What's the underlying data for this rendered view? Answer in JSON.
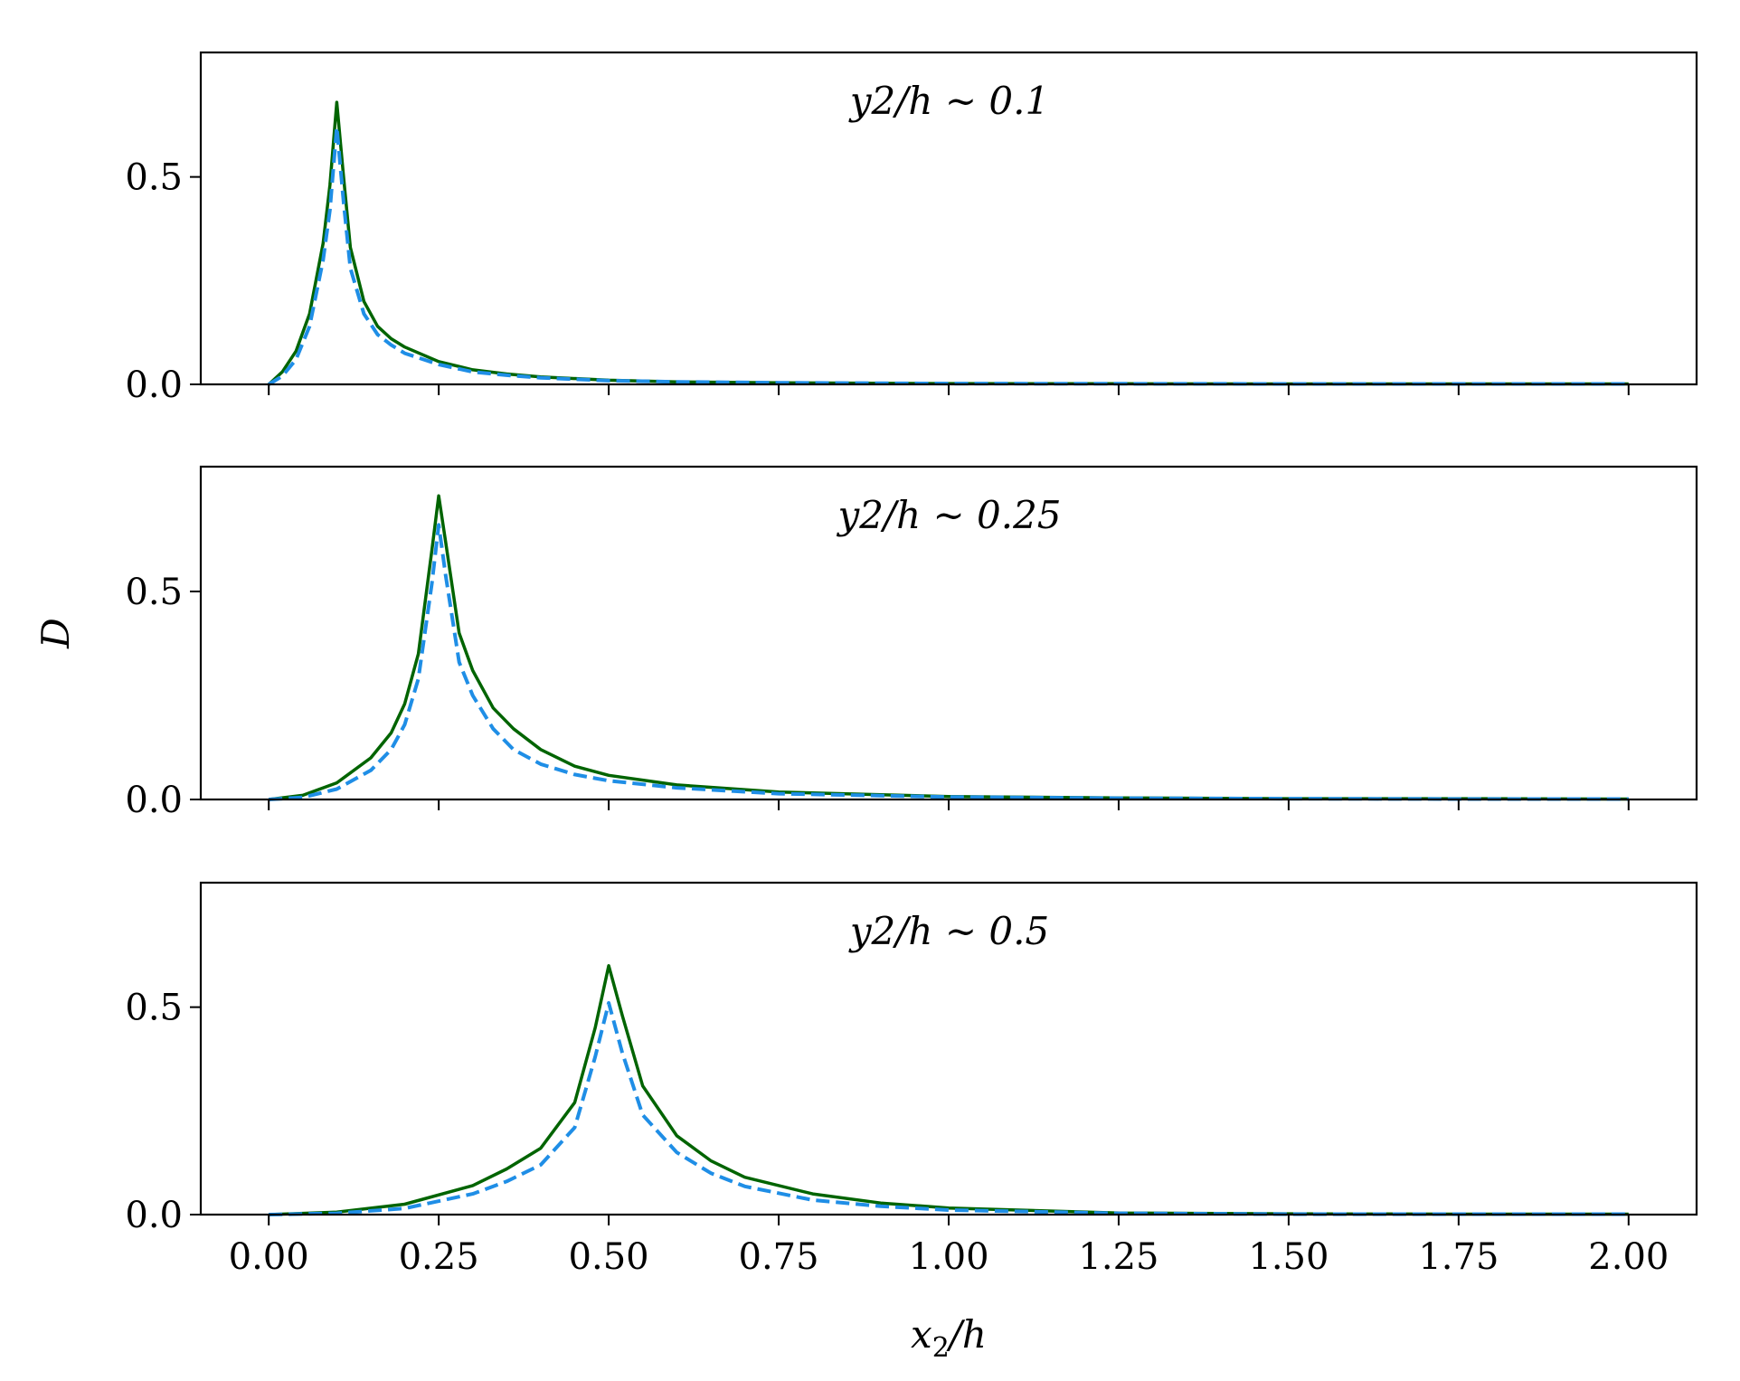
{
  "chart_data": [
    {
      "type": "line",
      "annotation": "y2/h ~ 0.1",
      "xlim": [
        -0.1,
        2.1
      ],
      "ylim": [
        0,
        0.8
      ],
      "yticks": [
        "0.0",
        "0.5"
      ],
      "ytick_values": [
        0,
        0.5
      ],
      "series": [
        {
          "style": "solid",
          "color": "#006400",
          "x": [
            0,
            0.02,
            0.04,
            0.06,
            0.08,
            0.09,
            0.1,
            0.11,
            0.12,
            0.14,
            0.16,
            0.18,
            0.2,
            0.25,
            0.3,
            0.35,
            0.4,
            0.5,
            0.6,
            0.75,
            1.0,
            1.25,
            1.5,
            1.75,
            2.0
          ],
          "y": [
            0,
            0.03,
            0.08,
            0.17,
            0.34,
            0.48,
            0.68,
            0.5,
            0.33,
            0.2,
            0.14,
            0.11,
            0.09,
            0.055,
            0.035,
            0.025,
            0.018,
            0.01,
            0.006,
            0.004,
            0.002,
            0.0015,
            0.001,
            0.001,
            0.001
          ]
        },
        {
          "style": "dashed",
          "color": "#1f8ee6",
          "x": [
            0,
            0.02,
            0.04,
            0.06,
            0.08,
            0.09,
            0.1,
            0.11,
            0.12,
            0.14,
            0.16,
            0.18,
            0.2,
            0.25,
            0.3,
            0.35,
            0.4,
            0.5,
            0.6,
            0.75,
            1.0,
            1.25,
            1.5,
            1.75,
            2.0
          ],
          "y": [
            0,
            0.02,
            0.06,
            0.14,
            0.3,
            0.42,
            0.62,
            0.44,
            0.28,
            0.17,
            0.12,
            0.095,
            0.075,
            0.048,
            0.03,
            0.022,
            0.016,
            0.009,
            0.006,
            0.004,
            0.002,
            0.0015,
            0.001,
            0.001,
            0.001
          ]
        }
      ]
    },
    {
      "type": "line",
      "annotation": "y2/h ~ 0.25",
      "xlim": [
        -0.1,
        2.1
      ],
      "ylim": [
        0,
        0.8
      ],
      "yticks": [
        "0.0",
        "0.5"
      ],
      "ytick_values": [
        0,
        0.5
      ],
      "series": [
        {
          "style": "solid",
          "color": "#006400",
          "x": [
            0,
            0.05,
            0.1,
            0.15,
            0.18,
            0.2,
            0.22,
            0.24,
            0.25,
            0.26,
            0.28,
            0.3,
            0.33,
            0.36,
            0.4,
            0.45,
            0.5,
            0.6,
            0.75,
            1.0,
            1.25,
            1.5,
            1.75,
            2.0
          ],
          "y": [
            0,
            0.01,
            0.04,
            0.1,
            0.16,
            0.23,
            0.35,
            0.6,
            0.73,
            0.62,
            0.4,
            0.31,
            0.22,
            0.17,
            0.12,
            0.08,
            0.058,
            0.035,
            0.018,
            0.007,
            0.004,
            0.002,
            0.002,
            0.001
          ]
        },
        {
          "style": "dashed",
          "color": "#1f8ee6",
          "x": [
            0,
            0.05,
            0.1,
            0.15,
            0.18,
            0.2,
            0.22,
            0.24,
            0.25,
            0.26,
            0.28,
            0.3,
            0.33,
            0.36,
            0.4,
            0.45,
            0.5,
            0.6,
            0.75,
            1.0,
            1.25,
            1.5,
            1.75,
            2.0
          ],
          "y": [
            0,
            0.005,
            0.025,
            0.07,
            0.12,
            0.18,
            0.29,
            0.52,
            0.66,
            0.54,
            0.33,
            0.25,
            0.17,
            0.12,
            0.085,
            0.06,
            0.045,
            0.028,
            0.014,
            0.006,
            0.003,
            0.002,
            0.001,
            0.001
          ]
        }
      ]
    },
    {
      "type": "line",
      "annotation": "y2/h ~ 0.5",
      "xlim": [
        -0.1,
        2.1
      ],
      "ylim": [
        0,
        0.8
      ],
      "yticks": [
        "0.0",
        "0.5"
      ],
      "ytick_values": [
        0,
        0.5
      ],
      "xticks": [
        "0.00",
        "0.25",
        "0.50",
        "0.75",
        "1.00",
        "1.25",
        "1.50",
        "1.75",
        "2.00"
      ],
      "xtick_values": [
        0,
        0.25,
        0.5,
        0.75,
        1.0,
        1.25,
        1.5,
        1.75,
        2.0
      ],
      "series": [
        {
          "style": "solid",
          "color": "#006400",
          "x": [
            0,
            0.1,
            0.2,
            0.3,
            0.35,
            0.4,
            0.45,
            0.48,
            0.5,
            0.52,
            0.55,
            0.6,
            0.65,
            0.7,
            0.8,
            0.9,
            1.0,
            1.25,
            1.5,
            1.75,
            2.0
          ],
          "y": [
            0,
            0.006,
            0.025,
            0.07,
            0.11,
            0.16,
            0.27,
            0.45,
            0.6,
            0.48,
            0.31,
            0.19,
            0.13,
            0.09,
            0.05,
            0.028,
            0.016,
            0.004,
            0.002,
            0.001,
            0.001
          ]
        },
        {
          "style": "dashed",
          "color": "#1f8ee6",
          "x": [
            0,
            0.1,
            0.2,
            0.3,
            0.35,
            0.4,
            0.45,
            0.48,
            0.5,
            0.52,
            0.55,
            0.6,
            0.65,
            0.7,
            0.8,
            0.9,
            1.0,
            1.25,
            1.5,
            1.75,
            2.0
          ],
          "y": [
            0,
            0.003,
            0.015,
            0.05,
            0.08,
            0.12,
            0.21,
            0.38,
            0.51,
            0.39,
            0.24,
            0.15,
            0.1,
            0.068,
            0.035,
            0.02,
            0.011,
            0.003,
            0.001,
            0.001,
            0.001
          ]
        }
      ]
    }
  ],
  "xlabel": {
    "base": "x",
    "sub": "2",
    "rest": "/h"
  },
  "ylabel": "D"
}
